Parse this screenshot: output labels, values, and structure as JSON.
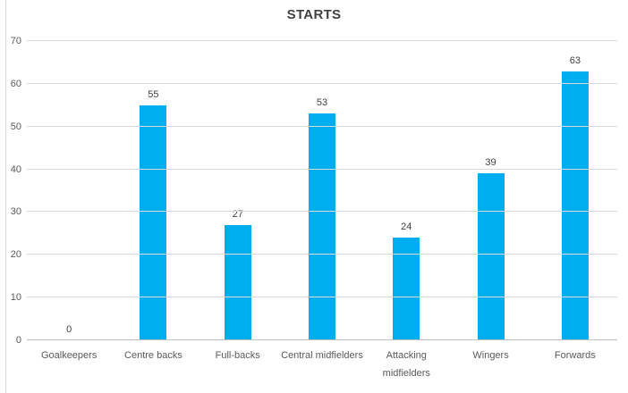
{
  "chart_data": {
    "type": "bar",
    "title": "STARTS",
    "categories": [
      "Goalkeepers",
      "Centre backs",
      "Full-backs",
      "Central midfielders",
      "Attacking\nmidfielders",
      "Wingers",
      "Forwards"
    ],
    "values": [
      0,
      55,
      27,
      53,
      24,
      39,
      63
    ],
    "data_labels": [
      "0",
      "55",
      "27",
      "53",
      "24",
      "39",
      "63"
    ],
    "xlabel": "",
    "ylabel": "",
    "ylim": [
      0,
      70
    ],
    "y_ticks": [
      0,
      10,
      20,
      30,
      40,
      50,
      60,
      70
    ],
    "grid": true,
    "legend_position": "none",
    "colors": {
      "bar": "#00aeef",
      "gridline": "#d9d9d9",
      "axis_line": "#bfbfbf",
      "tick_label": "#595959",
      "data_label": "#404040",
      "title": "#404040",
      "chart_border": "#d9d9d9",
      "background": "#ffffff"
    }
  }
}
